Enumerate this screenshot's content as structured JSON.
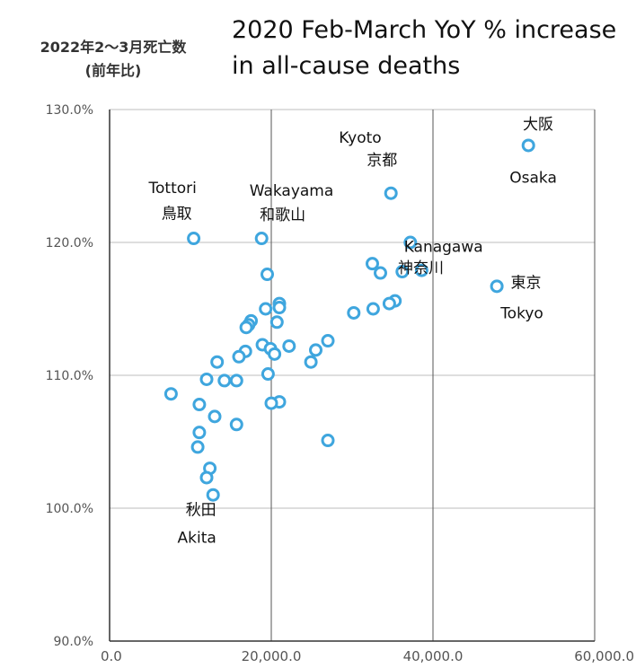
{
  "chart_data": {
    "type": "scatter",
    "title": "2020 Feb-March YoY % increase in all-cause deaths",
    "ylabel_lines": [
      "2022年2〜3月死亡数",
      "(前年比)"
    ],
    "xlim": [
      0,
      60000
    ],
    "ylim": [
      90,
      130
    ],
    "x_ticks": [
      "0.0",
      "20,000.0",
      "40,000.0",
      "60,000.0"
    ],
    "x_tick_values": [
      0,
      20000,
      40000,
      60000
    ],
    "y_ticks": [
      "90.0%",
      "100.0%",
      "110.0%",
      "120.0%",
      "130.0%"
    ],
    "y_tick_values": [
      90,
      100,
      110,
      120,
      130
    ],
    "grid": true,
    "marker_color": "#3fa6de",
    "points": [
      {
        "x": 51800,
        "y": 127.3
      },
      {
        "x": 34800,
        "y": 123.7
      },
      {
        "x": 10400,
        "y": 120.3
      },
      {
        "x": 18800,
        "y": 120.3
      },
      {
        "x": 37200,
        "y": 120.0
      },
      {
        "x": 32500,
        "y": 118.4
      },
      {
        "x": 33500,
        "y": 117.7
      },
      {
        "x": 36200,
        "y": 117.8
      },
      {
        "x": 38600,
        "y": 117.9
      },
      {
        "x": 19500,
        "y": 117.6
      },
      {
        "x": 47900,
        "y": 116.7
      },
      {
        "x": 21000,
        "y": 115.4
      },
      {
        "x": 21000,
        "y": 115.1
      },
      {
        "x": 35300,
        "y": 115.6
      },
      {
        "x": 34600,
        "y": 115.4
      },
      {
        "x": 32600,
        "y": 115.0
      },
      {
        "x": 30200,
        "y": 114.7
      },
      {
        "x": 19300,
        "y": 115.0
      },
      {
        "x": 17500,
        "y": 114.1
      },
      {
        "x": 17200,
        "y": 113.8
      },
      {
        "x": 16900,
        "y": 113.6
      },
      {
        "x": 20700,
        "y": 114.0
      },
      {
        "x": 27000,
        "y": 112.6
      },
      {
        "x": 18900,
        "y": 112.3
      },
      {
        "x": 22200,
        "y": 112.2
      },
      {
        "x": 19900,
        "y": 112.0
      },
      {
        "x": 25500,
        "y": 111.9
      },
      {
        "x": 16800,
        "y": 111.8
      },
      {
        "x": 20400,
        "y": 111.6
      },
      {
        "x": 16000,
        "y": 111.4
      },
      {
        "x": 13300,
        "y": 111.0
      },
      {
        "x": 24900,
        "y": 111.0
      },
      {
        "x": 19600,
        "y": 110.1
      },
      {
        "x": 12000,
        "y": 109.7
      },
      {
        "x": 14200,
        "y": 109.6
      },
      {
        "x": 15700,
        "y": 109.6
      },
      {
        "x": 7600,
        "y": 108.6
      },
      {
        "x": 21000,
        "y": 108.0
      },
      {
        "x": 20000,
        "y": 107.9
      },
      {
        "x": 11100,
        "y": 107.8
      },
      {
        "x": 13000,
        "y": 106.9
      },
      {
        "x": 15700,
        "y": 106.3
      },
      {
        "x": 11100,
        "y": 105.7
      },
      {
        "x": 27000,
        "y": 105.1
      },
      {
        "x": 10900,
        "y": 104.6
      },
      {
        "x": 12400,
        "y": 103.0
      },
      {
        "x": 12000,
        "y": 102.3
      },
      {
        "x": 12800,
        "y": 101.0
      }
    ],
    "annotations": [
      {
        "text": "大阪",
        "x": 53000,
        "y": 128.5
      },
      {
        "text": "Osaka",
        "x": 52400,
        "y": 124.5
      },
      {
        "text": "Kyoto",
        "x": 31000,
        "y": 127.5
      },
      {
        "text": "京都",
        "x": 33700,
        "y": 125.8
      },
      {
        "text": "Tottori",
        "x": 7800,
        "y": 123.7
      },
      {
        "text": "鳥取",
        "x": 8300,
        "y": 121.8
      },
      {
        "text": "Wakayama",
        "x": 22500,
        "y": 123.5
      },
      {
        "text": "和歌山",
        "x": 21400,
        "y": 121.7
      },
      {
        "text": "Kanagawa",
        "x": 41300,
        "y": 119.3
      },
      {
        "text": "神奈川",
        "x": 38500,
        "y": 117.7
      },
      {
        "text": "東京",
        "x": 51500,
        "y": 116.6
      },
      {
        "text": "Tokyo",
        "x": 51000,
        "y": 114.3
      },
      {
        "text": "秋田",
        "x": 11300,
        "y": 99.5
      },
      {
        "text": "Akita",
        "x": 10800,
        "y": 97.4
      }
    ]
  }
}
